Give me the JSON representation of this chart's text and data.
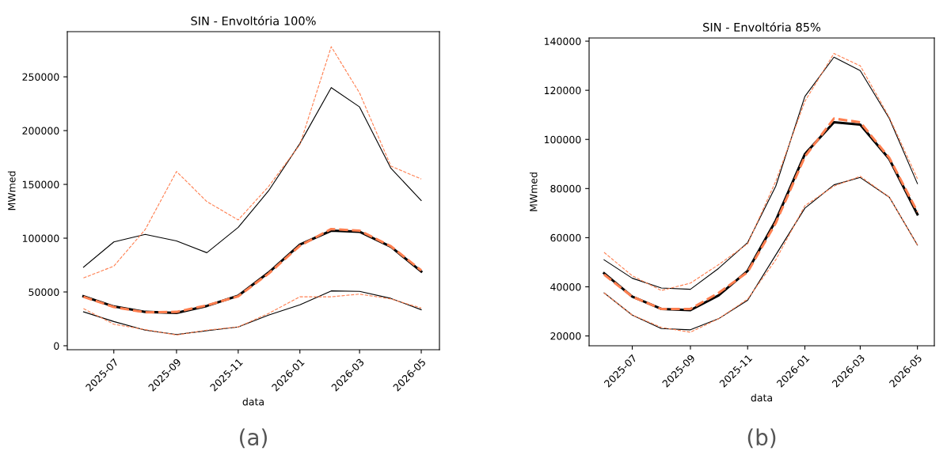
{
  "chart_data": [
    {
      "type": "line",
      "title": "SIN - Envoltória 100%",
      "xlabel": "data",
      "ylabel": "MWmed",
      "annotations": [
        "(a)"
      ],
      "x": [
        "2025-06-01",
        "2025-07-01",
        "2025-08-01",
        "2025-09-01",
        "2025-10-01",
        "2025-11-01",
        "2025-12-01",
        "2026-01-01",
        "2026-02-01",
        "2026-03-01",
        "2026-04-01",
        "2026-05-01"
      ],
      "xlim": [
        "2025-05-16",
        "2026-05-19"
      ],
      "ylim": [
        -3700,
        292000
      ],
      "xticks": [
        {
          "value": "2025-07-01",
          "label": "2025-07"
        },
        {
          "value": "2025-09-01",
          "label": "2025-09"
        },
        {
          "value": "2025-11-01",
          "label": "2025-11"
        },
        {
          "value": "2026-01-01",
          "label": "2026-01"
        },
        {
          "value": "2026-03-01",
          "label": "2026-03"
        },
        {
          "value": "2026-05-01",
          "label": "2026-05"
        }
      ],
      "yticks": [
        0,
        50000,
        100000,
        150000,
        200000,
        250000
      ],
      "series": [
        {
          "color": "#000000",
          "line_style": "solid",
          "values": [
            73000,
            96500,
            103500,
            97500,
            86500,
            110000,
            144000,
            188000,
            240000,
            222000,
            165000,
            135000
          ]
        },
        {
          "color": "#ff7f50",
          "line_style": "dashed",
          "values": [
            63000,
            74000,
            108000,
            162000,
            134000,
            117000,
            148000,
            187000,
            278000,
            235000,
            167000,
            155000
          ]
        },
        {
          "color": "#000000",
          "line_style": "solid",
          "values": [
            46000,
            36500,
            31500,
            30500,
            37000,
            46500,
            68000,
            94000,
            107000,
            106000,
            92000,
            69000
          ]
        },
        {
          "color": "#ff7f50",
          "line_style": "dashed",
          "values": [
            45500,
            36000,
            31000,
            31500,
            37500,
            46000,
            67000,
            93000,
            108500,
            107000,
            92500,
            70000
          ]
        },
        {
          "color": "#000000",
          "line_style": "solid",
          "values": [
            31500,
            22500,
            14500,
            10500,
            14000,
            17500,
            28500,
            38000,
            51000,
            50500,
            44000,
            33500
          ]
        },
        {
          "color": "#ff7f50",
          "line_style": "dashed",
          "values": [
            34500,
            20000,
            15000,
            10000,
            14500,
            17500,
            30000,
            45500,
            45500,
            48000,
            43500,
            35000
          ]
        }
      ]
    },
    {
      "type": "line",
      "title": "SIN - Envoltória 85%",
      "xlabel": "data",
      "ylabel": "MWmed",
      "annotations": [
        "(b)"
      ],
      "x": [
        "2025-06-01",
        "2025-07-01",
        "2025-08-01",
        "2025-09-01",
        "2025-10-01",
        "2025-11-01",
        "2025-12-01",
        "2026-01-01",
        "2026-02-01",
        "2026-03-01",
        "2026-04-01",
        "2026-05-01"
      ],
      "xlim": [
        "2025-05-16",
        "2026-05-19"
      ],
      "ylim": [
        16000,
        141300
      ],
      "xticks": [
        {
          "value": "2025-07-01",
          "label": "2025-07"
        },
        {
          "value": "2025-09-01",
          "label": "2025-09"
        },
        {
          "value": "2025-11-01",
          "label": "2025-11"
        },
        {
          "value": "2026-01-01",
          "label": "2026-01"
        },
        {
          "value": "2026-03-01",
          "label": "2026-03"
        },
        {
          "value": "2026-05-01",
          "label": "2026-05"
        }
      ],
      "yticks": [
        20000,
        40000,
        60000,
        80000,
        100000,
        120000,
        140000
      ],
      "series": [
        {
          "color": "#000000",
          "line_style": "solid",
          "values": [
            51000,
            43500,
            39500,
            39000,
            47500,
            58000,
            81000,
            117500,
            133500,
            128000,
            108500,
            82000
          ]
        },
        {
          "color": "#ff7f50",
          "line_style": "dashed",
          "values": [
            54000,
            44500,
            38500,
            41500,
            49000,
            57500,
            83000,
            115500,
            135000,
            130000,
            109000,
            84000
          ]
        },
        {
          "color": "#000000",
          "line_style": "solid",
          "values": [
            45500,
            36000,
            31000,
            30500,
            36500,
            46500,
            67000,
            94000,
            107000,
            106000,
            92000,
            69500
          ]
        },
        {
          "color": "#ff7f50",
          "line_style": "dashed",
          "values": [
            45000,
            36000,
            31000,
            31000,
            37500,
            46000,
            66000,
            93000,
            108500,
            107000,
            92500,
            70500
          ]
        },
        {
          "color": "#000000",
          "line_style": "solid",
          "values": [
            37500,
            28500,
            23000,
            22500,
            27000,
            34500,
            53000,
            72000,
            81500,
            84500,
            76500,
            57000
          ]
        },
        {
          "color": "#ff7f50",
          "line_style": "dashed",
          "values": [
            37500,
            28500,
            23500,
            21500,
            27000,
            35000,
            51000,
            73000,
            81000,
            85000,
            76500,
            57000
          ]
        }
      ]
    }
  ]
}
